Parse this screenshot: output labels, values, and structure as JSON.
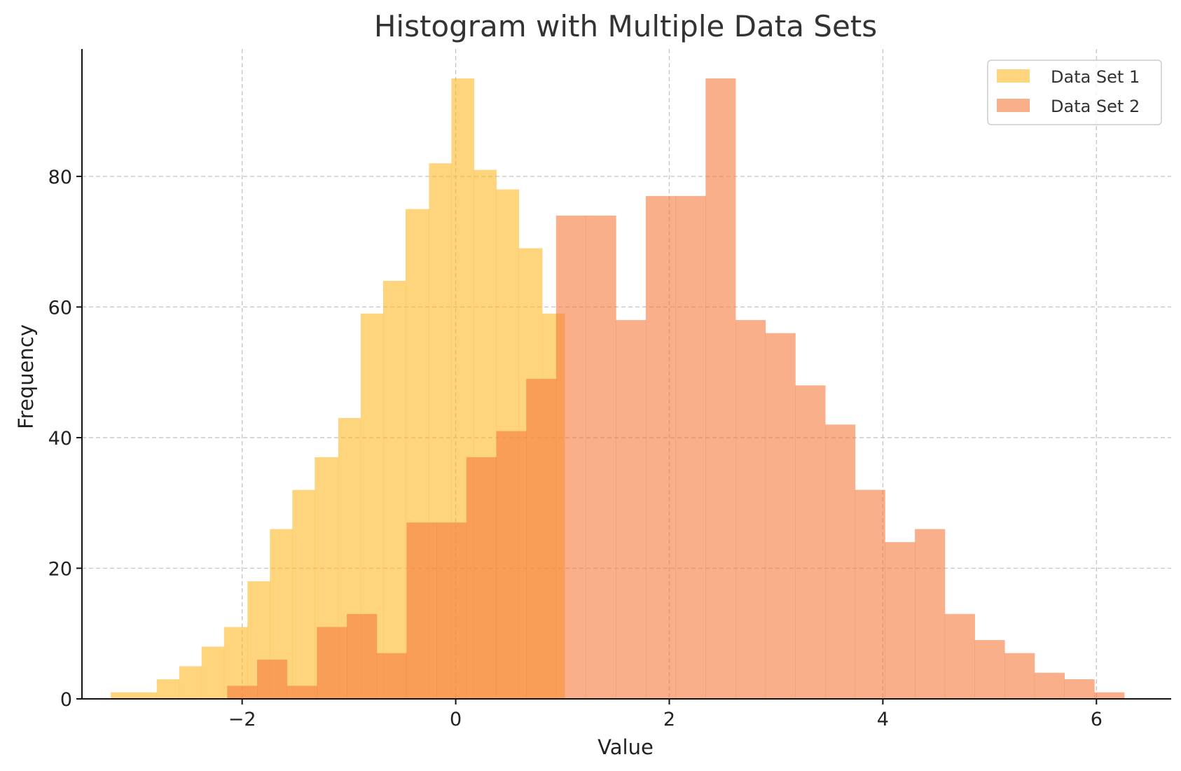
{
  "chart_data": {
    "type": "bar",
    "title": "Histogram with Multiple Data Sets",
    "xlabel": "Value",
    "ylabel": "Frequency",
    "xlim": [
      -3.5,
      6.7
    ],
    "ylim": [
      0,
      99.5
    ],
    "xticks": [
      -2,
      0,
      2,
      4,
      6
    ],
    "xtick_labels": [
      "−2",
      "0",
      "2",
      "4",
      "6"
    ],
    "yticks": [
      0,
      20,
      40,
      60,
      80
    ],
    "ytick_labels": [
      "0",
      "20",
      "40",
      "60",
      "80"
    ],
    "grid": true,
    "legend_position": "top-right",
    "series": [
      {
        "name": "Data Set 1",
        "color": "#fdb827",
        "opacity": 0.6,
        "bin_edges": [
          -3.23,
          -2.8,
          -2.59,
          -2.38,
          -2.17,
          -1.95,
          -1.74,
          -1.53,
          -1.32,
          -1.1,
          -0.89,
          -0.68,
          -0.47,
          -0.25,
          -0.04,
          0.17,
          0.38,
          0.59,
          0.81,
          1.02
        ],
        "counts": [
          1,
          3,
          5,
          8,
          11,
          18,
          26,
          32,
          37,
          43,
          59,
          64,
          75,
          82,
          95,
          81,
          78,
          69,
          59
        ]
      },
      {
        "name": "Data Set 2",
        "color": "#f47a3c",
        "opacity": 0.6,
        "bin_edges": [
          -2.14,
          -1.86,
          -1.58,
          -1.3,
          -1.02,
          -0.74,
          -0.46,
          -0.18,
          0.1,
          0.38,
          0.66,
          0.94,
          1.22,
          1.5,
          1.78,
          2.06,
          2.34,
          2.62,
          2.9,
          3.18,
          3.46,
          3.74,
          4.02,
          4.3,
          4.58,
          4.86,
          5.14,
          5.42,
          5.7,
          5.98,
          6.26
        ],
        "counts": [
          2,
          6,
          2,
          11,
          13,
          7,
          27,
          27,
          37,
          41,
          49,
          74,
          74,
          58,
          77,
          77,
          95,
          58,
          56,
          48,
          42,
          32,
          24,
          26,
          13,
          9,
          7,
          4,
          3,
          1
        ]
      }
    ]
  }
}
